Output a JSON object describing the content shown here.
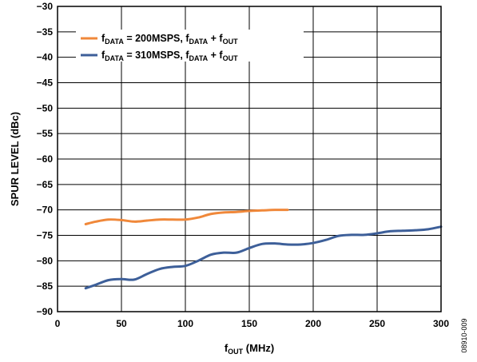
{
  "chart_data": {
    "type": "line",
    "xlabel": {
      "main": "f",
      "sub": "OUT",
      "rest": " (MHz)"
    },
    "ylabel": "SPUR LEVEL (dBc)",
    "xlim": [
      0,
      300
    ],
    "ylim": [
      -90,
      -30
    ],
    "xticks": [
      0,
      50,
      100,
      150,
      200,
      250,
      300
    ],
    "yticks": [
      -30,
      -35,
      -40,
      -45,
      -50,
      -55,
      -60,
      -65,
      -70,
      -75,
      -80,
      -85,
      -90
    ],
    "grid": true,
    "legend_position": "top-left",
    "series": [
      {
        "name": "fDATA = 200MSPS, fDATA + fOUT",
        "legend": [
          {
            "t": "f",
            "sub": false
          },
          {
            "t": "DATA",
            "sub": true
          },
          {
            "t": " = 200MSPS, f",
            "sub": false
          },
          {
            "t": "DATA",
            "sub": true
          },
          {
            "t": " + f",
            "sub": false
          },
          {
            "t": "OUT",
            "sub": true
          }
        ],
        "color": "#f0883a",
        "x": [
          22,
          30,
          40,
          50,
          60,
          70,
          80,
          90,
          100,
          110,
          120,
          130,
          140,
          150,
          160,
          170,
          180
        ],
        "y": [
          -72.8,
          -72.3,
          -71.9,
          -72.0,
          -72.3,
          -72.1,
          -71.9,
          -71.9,
          -71.9,
          -71.5,
          -70.8,
          -70.5,
          -70.4,
          -70.2,
          -70.1,
          -70.0,
          -70.0
        ]
      },
      {
        "name": "fDATA = 310MSPS, fDATA + fOUT",
        "legend": [
          {
            "t": "f",
            "sub": false
          },
          {
            "t": "DATA",
            "sub": true
          },
          {
            "t": " = 310MSPS, f",
            "sub": false
          },
          {
            "t": "DATA",
            "sub": true
          },
          {
            "t": " + f",
            "sub": false
          },
          {
            "t": "OUT",
            "sub": true
          }
        ],
        "color": "#3d5f99",
        "x": [
          22,
          30,
          40,
          50,
          60,
          70,
          80,
          90,
          100,
          110,
          120,
          130,
          140,
          150,
          160,
          170,
          180,
          190,
          200,
          210,
          220,
          230,
          240,
          250,
          260,
          270,
          280,
          290,
          300
        ],
        "y": [
          -85.4,
          -84.7,
          -83.8,
          -83.6,
          -83.7,
          -82.6,
          -81.6,
          -81.2,
          -81.0,
          -80.0,
          -78.8,
          -78.4,
          -78.4,
          -77.5,
          -76.7,
          -76.6,
          -76.8,
          -76.8,
          -76.5,
          -75.9,
          -75.1,
          -74.9,
          -74.9,
          -74.6,
          -74.2,
          -74.1,
          -74.0,
          -73.8,
          -73.3
        ]
      }
    ],
    "figure_id": "08910-009"
  }
}
